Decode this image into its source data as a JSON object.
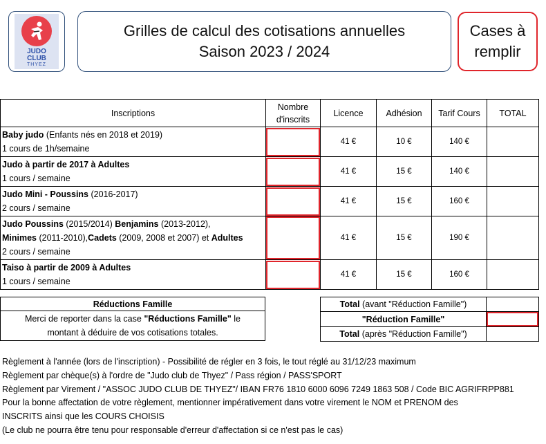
{
  "logo": {
    "line1": "JUDO",
    "line2": "CLUB",
    "line3": "THYEZ",
    "colors": {
      "circle": "#e8404a",
      "text": "#2b4fa8",
      "background": "#dde3f2"
    }
  },
  "header": {
    "title_line1": "Grilles de calcul des cotisations annuelles",
    "title_line2": "Saison 2023 / 2024",
    "cases_line1": "Cases à",
    "cases_line2": "remplir"
  },
  "accent_color": "#e0252b",
  "table": {
    "columns": [
      "Inscriptions",
      "Nombre d'inscrits",
      "Licence",
      "Adhésion",
      "Tarif Cours",
      "TOTAL"
    ],
    "col_inscrits_line1": "Nombre",
    "col_inscrits_line2": "d'inscrits",
    "rows": [
      {
        "title_bold": "Baby judo",
        "title_rest": " (Enfants nés en 2018 et 2019)",
        "schedule": "1 cours de 1h/semaine",
        "licence": "41 €",
        "adhesion": "10 €",
        "tarif": "140 €"
      },
      {
        "title_bold": "Judo à partir de 2017 à Adultes",
        "schedule": "1 cours / semaine",
        "licence": "41 €",
        "adhesion": "15 €",
        "tarif": "140 €"
      },
      {
        "title_bold": "Judo Mini - Poussins",
        "title_rest": " (2016-2017)",
        "schedule": "2 cours / semaine",
        "licence": "41 €",
        "adhesion": "15 €",
        "tarif": "160 €"
      },
      {
        "l1_b1": "Judo Poussins",
        "l1_n1": " (2015/2014) ",
        "l1_b2": "Benjamins",
        "l1_n2": " (2013-2012),",
        "l2_b1": "Minimes",
        "l2_n1": " (2011-2010),",
        "l2_b2": "Cadets",
        "l2_n2": " (2009, 2008 et 2007) et ",
        "l2_b3": "Adultes",
        "schedule": "2 cours / semaine",
        "licence": "41 €",
        "adhesion": "15 €",
        "tarif": "190 €"
      },
      {
        "title_bold": "Taiso à partir de 2009 à Adultes",
        "schedule": "1 cours / semaine",
        "licence": "41 €",
        "adhesion": "15 €",
        "tarif": "160 €"
      }
    ]
  },
  "reductions": {
    "title": "Réductions Famille",
    "text_pre": "Merci de reporter dans la case ",
    "text_bold": "\"Réductions Famille\"",
    "text_post": " le montant à déduire de vos cotisations totales."
  },
  "totals": {
    "total_before_bold": "Total",
    "total_before_rest": " (avant \"Réduction Famille\")",
    "reduction_label": "\"Réduction Famille\"",
    "total_after_bold": "Total",
    "total_after_rest": " (après \"Réduction Famille\")"
  },
  "notes": [
    "Règlement à l'année (lors de l'inscription) - Possibilité de régler en 3 fois, le tout réglé au 31/12/23 maximum",
    "Règlement par chèque(s) à l'ordre de \"Judo club de Thyez\" / Pass région / PASS'SPORT",
    "Règlement par Virement / \"ASSOC JUDO CLUB DE THYEZ\"/ IBAN FR76 1810 6000 6096 7249 1863 508 / Code BIC AGRIFRPP881",
    "Pour la bonne affectation de votre règlement, mentionner impérativement dans votre virement le NOM et PRENOM des",
    "INSCRITS ainsi que les COURS CHOISIS",
    "(Le club ne pourra être tenu pour responsable d'erreur d'affectation si ce n'est pas le cas)"
  ]
}
